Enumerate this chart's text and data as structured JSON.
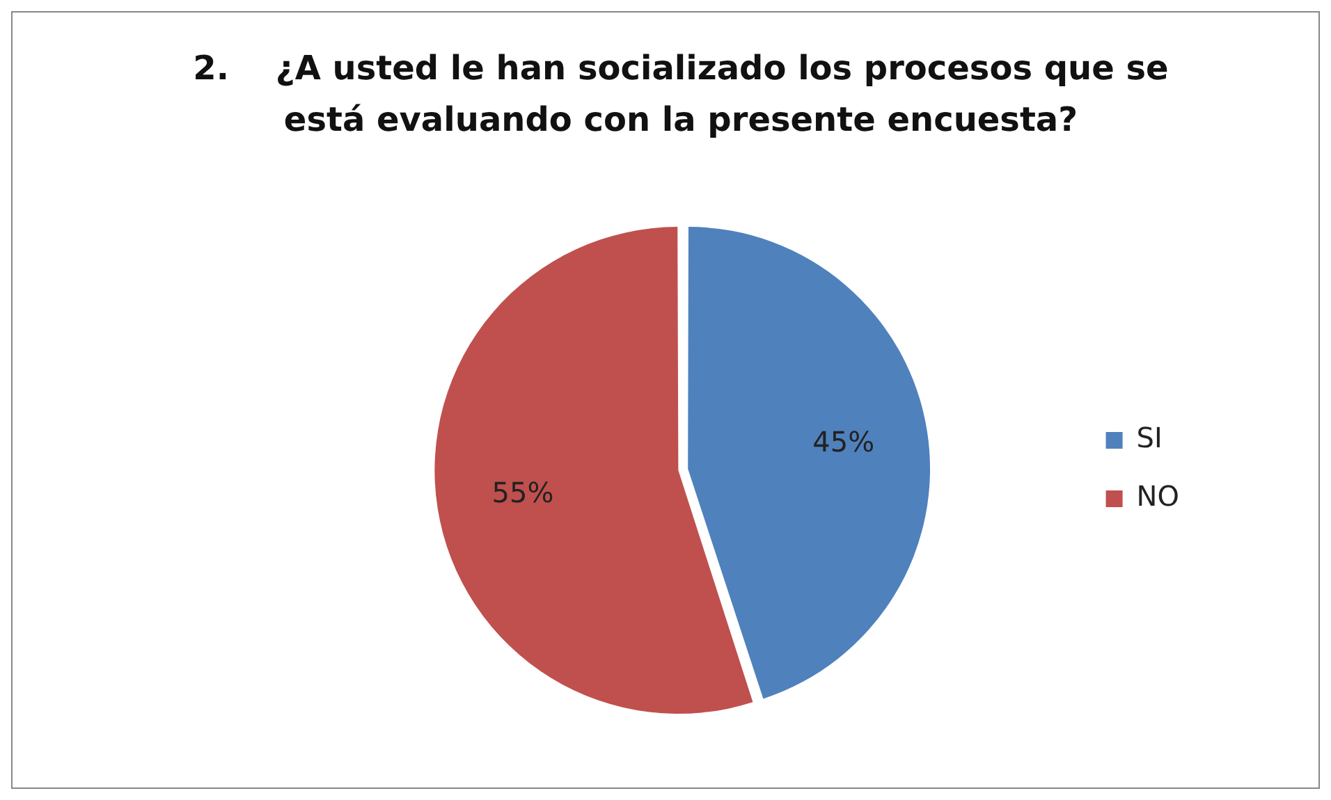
{
  "chart_data": {
    "type": "pie",
    "title": "2.    ¿A usted le han socializado los procesos que se está evaluando con la presente encuesta?",
    "categories": [
      "SI",
      "NO"
    ],
    "values": [
      45,
      55
    ],
    "colors": [
      "#4f81bd",
      "#c0504d"
    ],
    "value_labels": [
      "45%",
      "55%"
    ],
    "legend": "right"
  }
}
